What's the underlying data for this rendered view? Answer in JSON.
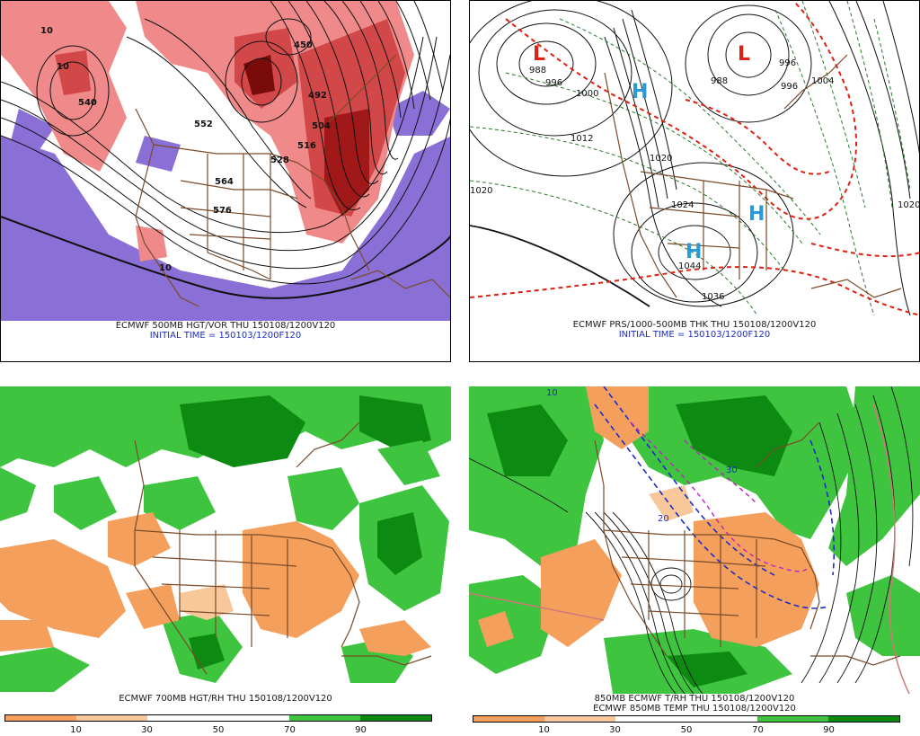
{
  "panels": {
    "p1": {
      "line1": "ECMWF 500MB HGT/VOR THU 150108/1200V120",
      "line2": "INITIAL TIME = 150103/1200F120",
      "labels": [
        "10",
        "10",
        "552",
        "564",
        "576",
        "492",
        "504",
        "516",
        "528",
        "540",
        "450",
        "10"
      ]
    },
    "p2": {
      "line1": "ECMWF PRS/1000-500MB THK THU 150108/1200V120",
      "line2": "INITIAL TIME = 150103/1200F120",
      "labels": [
        "996",
        "1000",
        "1012",
        "1020",
        "1024",
        "1044",
        "1036",
        "988",
        "996",
        "1004",
        "1020",
        "1020",
        "988",
        "996"
      ],
      "centers": [
        "L",
        "L",
        "H",
        "H",
        "H"
      ]
    },
    "p3": {
      "line1": "ECMWF 700MB HGT/RH THU 150108/1200V120",
      "legend": {
        "colors": [
          "#f4a05c",
          "#f8c89a",
          "#ffffff",
          "#ffffff",
          "#3fc43f",
          "#0d8a12"
        ],
        "ticks": [
          "10",
          "30",
          "50",
          "70",
          "90"
        ]
      }
    },
    "p4": {
      "line1": "850MB ECMWF T/RH THU 150108/1200V120",
      "line2": "ECMWF 850MB TEMP THU 150108/1200V120",
      "labels": [
        "10",
        "20",
        "30"
      ],
      "legend": {
        "colors": [
          "#f4a05c",
          "#f8c89a",
          "#ffffff",
          "#ffffff",
          "#3fc43f",
          "#0d8a12"
        ],
        "ticks": [
          "10",
          "30",
          "50",
          "70",
          "90"
        ]
      }
    }
  }
}
